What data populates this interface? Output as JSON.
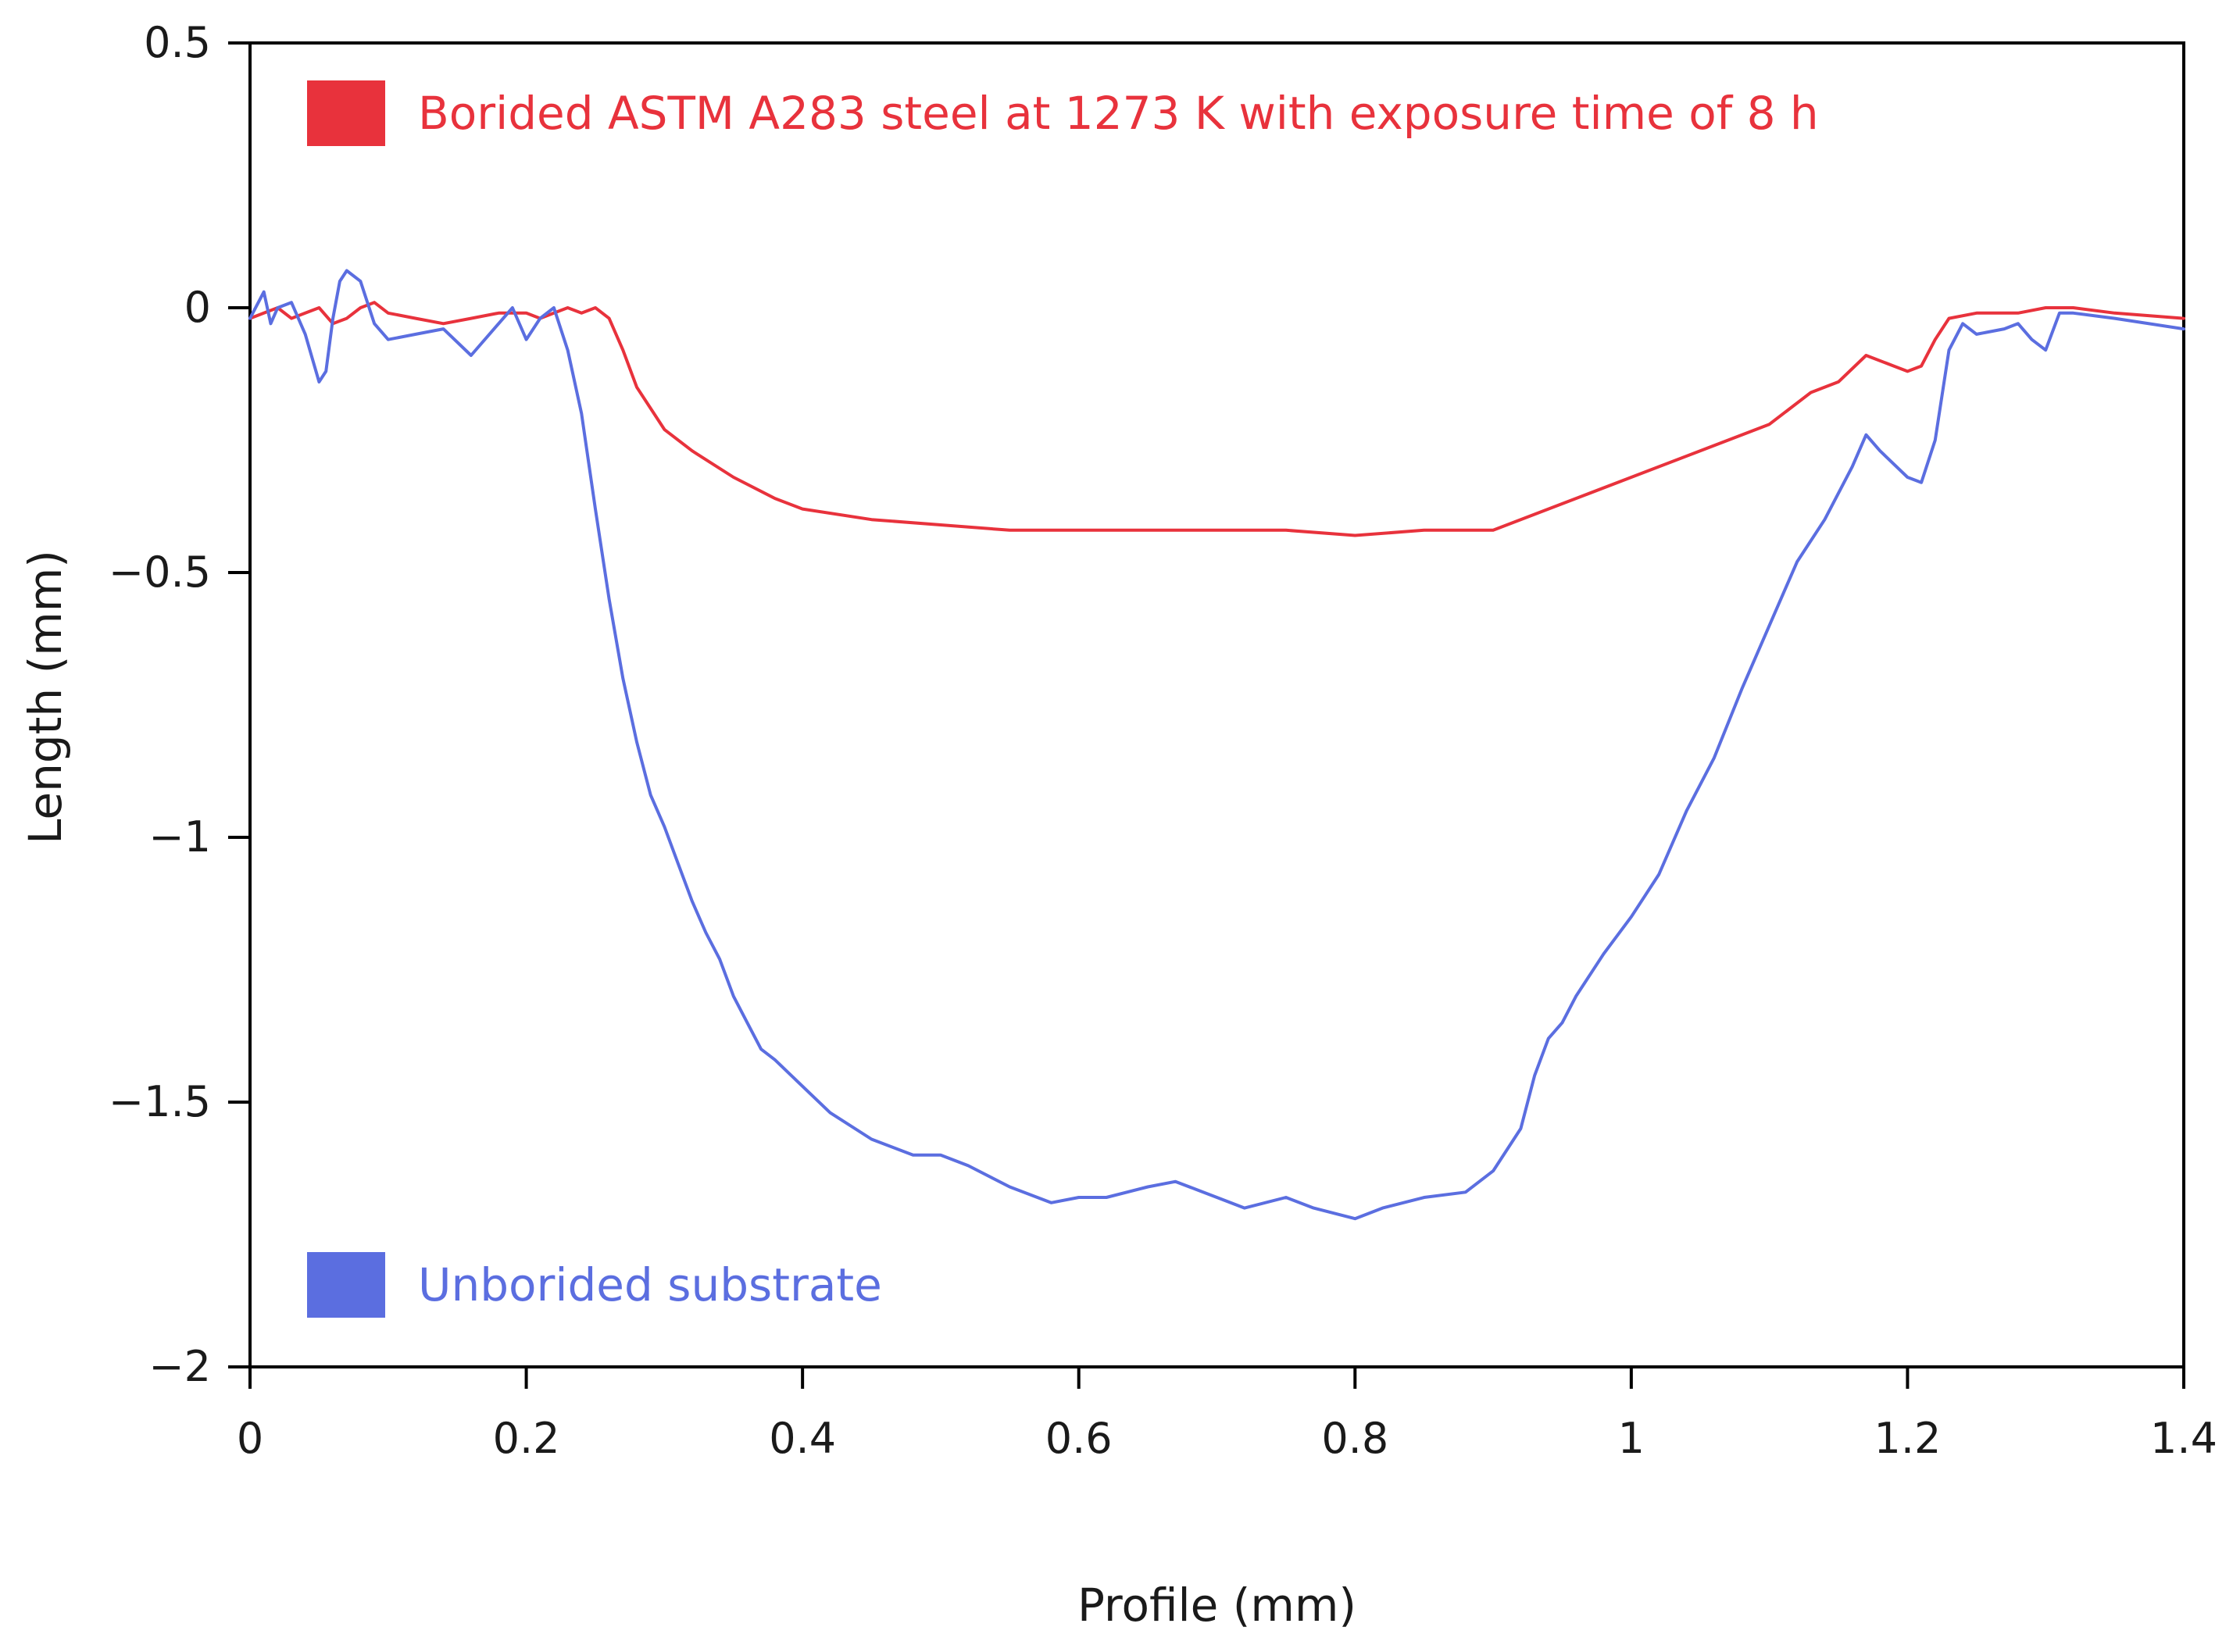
{
  "chart_data": {
    "type": "line",
    "title": "",
    "xlabel": "Profile (mm)",
    "ylabel": "Length (mm)",
    "xlim": [
      0,
      1.4
    ],
    "ylim": [
      -2,
      0.5
    ],
    "x_ticks": [
      0,
      0.2,
      0.4,
      0.6,
      0.8,
      1,
      1.2,
      1.4
    ],
    "x_tick_labels": [
      "0",
      "0.2",
      "0.4",
      "0.6",
      "0.8",
      "1",
      "1.2",
      "1.4"
    ],
    "y_ticks": [
      0.5,
      0,
      -0.5,
      -1,
      -1.5,
      -2
    ],
    "y_tick_labels": [
      "0.5",
      "0",
      "−0.5",
      "−1",
      "−1.5",
      "−2"
    ],
    "grid": false,
    "legend_placement": "inside, top-left and bottom-left",
    "series": [
      {
        "name": "Borided ASTM A283 steel at 1273 K with exposure time of 8 h",
        "color": "#e8323c",
        "x": [
          0,
          0.01,
          0.02,
          0.03,
          0.04,
          0.05,
          0.06,
          0.07,
          0.08,
          0.09,
          0.1,
          0.12,
          0.14,
          0.16,
          0.18,
          0.2,
          0.21,
          0.22,
          0.23,
          0.24,
          0.25,
          0.26,
          0.27,
          0.28,
          0.3,
          0.32,
          0.35,
          0.38,
          0.4,
          0.45,
          0.5,
          0.55,
          0.6,
          0.65,
          0.7,
          0.75,
          0.8,
          0.85,
          0.9,
          0.95,
          1.0,
          1.05,
          1.1,
          1.13,
          1.15,
          1.17,
          1.19,
          1.2,
          1.21,
          1.22,
          1.23,
          1.25,
          1.28,
          1.3,
          1.32,
          1.35,
          1.4
        ],
        "y": [
          -0.02,
          -0.01,
          0.0,
          -0.02,
          -0.01,
          0.0,
          -0.03,
          -0.02,
          0.0,
          0.01,
          -0.01,
          -0.02,
          -0.03,
          -0.02,
          -0.01,
          -0.01,
          -0.02,
          -0.01,
          0.0,
          -0.01,
          0.0,
          -0.02,
          -0.08,
          -0.15,
          -0.23,
          -0.27,
          -0.32,
          -0.36,
          -0.38,
          -0.4,
          -0.41,
          -0.42,
          -0.42,
          -0.42,
          -0.42,
          -0.42,
          -0.43,
          -0.42,
          -0.42,
          -0.37,
          -0.32,
          -0.27,
          -0.22,
          -0.16,
          -0.14,
          -0.09,
          -0.11,
          -0.12,
          -0.11,
          -0.06,
          -0.02,
          -0.01,
          -0.01,
          0.0,
          0.0,
          -0.01,
          -0.02
        ]
      },
      {
        "name": "Unborided substrate",
        "color": "#5b6ee0",
        "x": [
          0,
          0.01,
          0.015,
          0.02,
          0.03,
          0.04,
          0.05,
          0.055,
          0.06,
          0.065,
          0.07,
          0.08,
          0.09,
          0.1,
          0.12,
          0.14,
          0.16,
          0.18,
          0.19,
          0.2,
          0.21,
          0.22,
          0.23,
          0.24,
          0.25,
          0.26,
          0.27,
          0.28,
          0.29,
          0.3,
          0.31,
          0.32,
          0.33,
          0.34,
          0.35,
          0.36,
          0.37,
          0.38,
          0.4,
          0.42,
          0.45,
          0.48,
          0.5,
          0.52,
          0.55,
          0.58,
          0.6,
          0.62,
          0.65,
          0.67,
          0.7,
          0.72,
          0.75,
          0.77,
          0.8,
          0.82,
          0.85,
          0.88,
          0.9,
          0.92,
          0.93,
          0.94,
          0.95,
          0.96,
          0.97,
          0.98,
          1.0,
          1.02,
          1.04,
          1.06,
          1.08,
          1.1,
          1.12,
          1.14,
          1.16,
          1.17,
          1.18,
          1.2,
          1.21,
          1.22,
          1.23,
          1.24,
          1.25,
          1.27,
          1.28,
          1.29,
          1.3,
          1.31,
          1.32,
          1.35,
          1.4
        ],
        "y": [
          -0.02,
          0.03,
          -0.03,
          0.0,
          0.01,
          -0.05,
          -0.14,
          -0.12,
          -0.02,
          0.05,
          0.07,
          0.05,
          -0.03,
          -0.06,
          -0.05,
          -0.04,
          -0.09,
          -0.03,
          0.0,
          -0.06,
          -0.02,
          0.0,
          -0.08,
          -0.2,
          -0.38,
          -0.55,
          -0.7,
          -0.82,
          -0.92,
          -0.98,
          -1.05,
          -1.12,
          -1.18,
          -1.23,
          -1.3,
          -1.35,
          -1.4,
          -1.42,
          -1.47,
          -1.52,
          -1.57,
          -1.6,
          -1.6,
          -1.62,
          -1.66,
          -1.69,
          -1.68,
          -1.68,
          -1.66,
          -1.65,
          -1.68,
          -1.7,
          -1.68,
          -1.7,
          -1.72,
          -1.7,
          -1.68,
          -1.67,
          -1.63,
          -1.55,
          -1.45,
          -1.38,
          -1.35,
          -1.3,
          -1.26,
          -1.22,
          -1.15,
          -1.07,
          -0.95,
          -0.85,
          -0.72,
          -0.6,
          -0.48,
          -0.4,
          -0.3,
          -0.24,
          -0.27,
          -0.32,
          -0.33,
          -0.25,
          -0.08,
          -0.03,
          -0.05,
          -0.04,
          -0.03,
          -0.06,
          -0.08,
          -0.01,
          -0.01,
          -0.02,
          -0.04
        ]
      }
    ]
  }
}
